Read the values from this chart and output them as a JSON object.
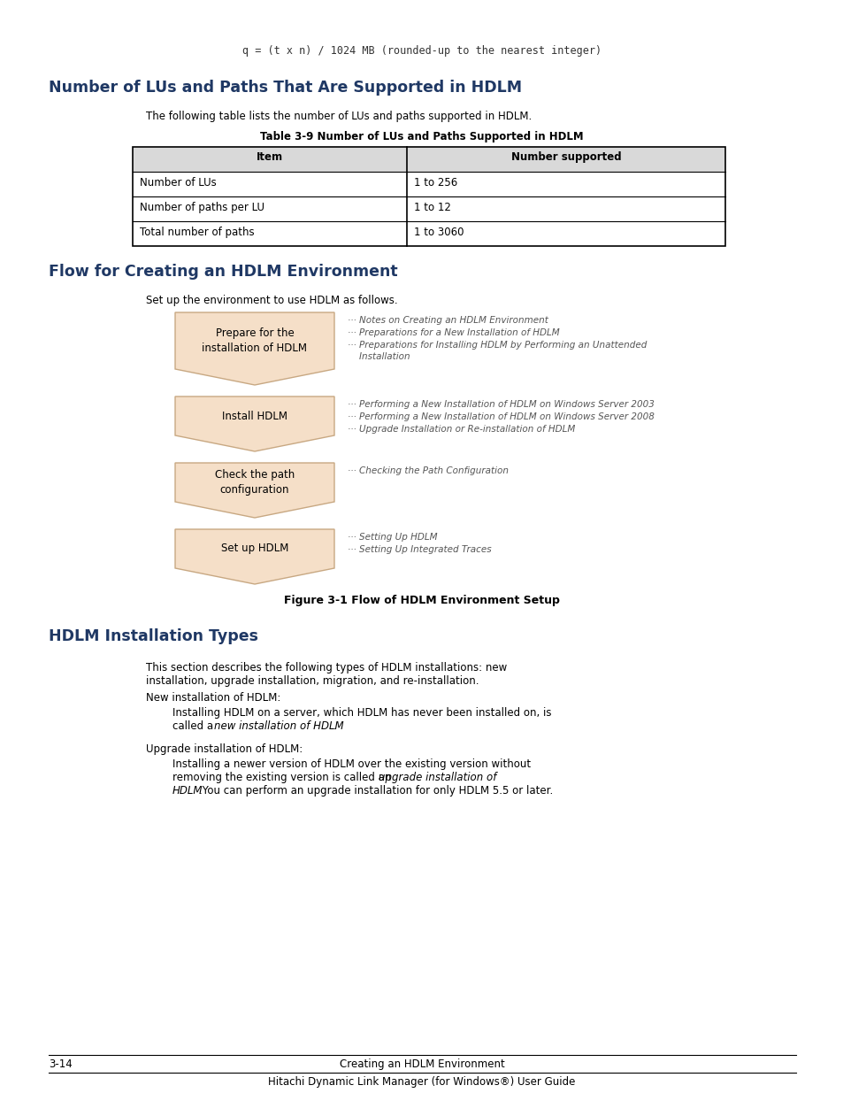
{
  "bg_color": "#ffffff",
  "heading_color": "#1f3864",
  "text_color": "#000000",
  "table_header_bg": "#d9d9d9",
  "arrow_fill": "#f5dfc8",
  "arrow_edge": "#c8a882",
  "formula_text": "q = (t x n) / 1024 MB (rounded-up to the nearest integer)",
  "section1_title": "Number of LUs and Paths That Are Supported in HDLM",
  "section1_intro": "The following table lists the number of LUs and paths supported in HDLM.",
  "table_caption": "Table 3-9 Number of LUs and Paths Supported in HDLM",
  "table_headers": [
    "Item",
    "Number supported"
  ],
  "table_rows": [
    [
      "Number of LUs",
      "1 to 256"
    ],
    [
      "Number of paths per LU",
      "1 to 12"
    ],
    [
      "Total number of paths",
      "1 to 3060"
    ]
  ],
  "section2_title": "Flow for Creating an HDLM Environment",
  "section2_intro": "Set up the environment to use HDLM as follows.",
  "flow_steps": [
    {
      "label": "Prepare for the\ninstallation of HDLM",
      "notes": [
        "··· Notes on Creating an HDLM Environment",
        "··· Preparations for a New Installation of HDLM",
        "··· Preparations for Installing HDLM by Performing an Unattended\n    Installation"
      ]
    },
    {
      "label": "Install HDLM",
      "notes": [
        "··· Performing a New Installation of HDLM on Windows Server 2003",
        "··· Performing a New Installation of HDLM on Windows Server 2008",
        "··· Upgrade Installation or Re-installation of HDLM"
      ]
    },
    {
      "label": "Check the path\nconfiguration",
      "notes": [
        "··· Checking the Path Configuration"
      ]
    },
    {
      "label": "Set up HDLM",
      "notes": [
        "··· Setting Up HDLM",
        "··· Setting Up Integrated Traces"
      ]
    }
  ],
  "figure_caption": "Figure 3-1 Flow of HDLM Environment Setup",
  "section3_title": "HDLM Installation Types",
  "section3_para1a": "This section describes the following types of HDLM installations: new",
  "section3_para1b": "installation, upgrade installation, migration, and re-installation.",
  "section3_sub1": "New installation of HDLM:",
  "section3_sub2": "Upgrade installation of HDLM:",
  "footer_left": "3-14",
  "footer_center": "Creating an HDLM Environment",
  "footer_bottom": "Hitachi Dynamic Link Manager (for Windows®) User Guide",
  "note_color": "#555555",
  "note_size": 7.5
}
